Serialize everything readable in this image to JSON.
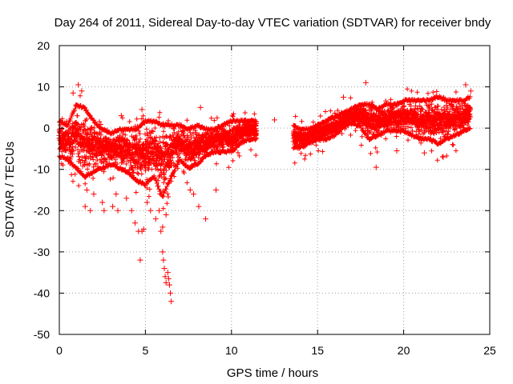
{
  "chart_data": {
    "type": "scatter",
    "title": "Day 264 of 2011, Sidereal Day-to-day VTEC variation (SDTVAR) for receiver bndy",
    "xlabel": "GPS time / hours",
    "ylabel": "SDTVAR / TECUs",
    "xlim": [
      0,
      25
    ],
    "ylim": [
      -50,
      20
    ],
    "xticks": [
      0,
      5,
      10,
      15,
      20,
      25
    ],
    "yticks": [
      -50,
      -40,
      -30,
      -20,
      -10,
      0,
      10,
      20
    ],
    "grid": true,
    "marker": "+",
    "color": "#ff0000",
    "series": [
      {
        "name": "SDTVAR",
        "band": [
          {
            "x": 0.0,
            "lo": -7,
            "hi": 2
          },
          {
            "x": 0.5,
            "lo": -8,
            "hi": 1
          },
          {
            "x": 1.0,
            "lo": -10,
            "hi": 6
          },
          {
            "x": 1.5,
            "lo": -12,
            "hi": 5
          },
          {
            "x": 2.0,
            "lo": -11,
            "hi": 2
          },
          {
            "x": 2.5,
            "lo": -10,
            "hi": 0
          },
          {
            "x": 3.0,
            "lo": -9,
            "hi": -1
          },
          {
            "x": 3.5,
            "lo": -10,
            "hi": 0
          },
          {
            "x": 4.0,
            "lo": -11,
            "hi": 0
          },
          {
            "x": 4.5,
            "lo": -13,
            "hi": 0
          },
          {
            "x": 5.0,
            "lo": -14,
            "hi": 2
          },
          {
            "x": 5.5,
            "lo": -12,
            "hi": 2
          },
          {
            "x": 6.0,
            "lo": -17,
            "hi": 1
          },
          {
            "x": 6.5,
            "lo": -12,
            "hi": 1
          },
          {
            "x": 7.0,
            "lo": -8,
            "hi": 1
          },
          {
            "x": 7.5,
            "lo": -10,
            "hi": 0
          },
          {
            "x": 8.0,
            "lo": -9,
            "hi": 1
          },
          {
            "x": 8.5,
            "lo": -7,
            "hi": 0
          },
          {
            "x": 9.0,
            "lo": -6,
            "hi": 0
          },
          {
            "x": 9.5,
            "lo": -6,
            "hi": 1
          },
          {
            "x": 10.0,
            "lo": -6,
            "hi": 2
          },
          {
            "x": 10.5,
            "lo": -4,
            "hi": 2
          },
          {
            "x": 11.0,
            "lo": -3,
            "hi": 2
          },
          {
            "x": 11.5,
            "lo": -3,
            "hi": 2
          },
          {
            "gap": true
          },
          {
            "x": 13.6,
            "lo": -5,
            "hi": 1
          },
          {
            "x": 14.0,
            "lo": -5,
            "hi": 0
          },
          {
            "x": 14.5,
            "lo": -4,
            "hi": 0
          },
          {
            "x": 15.0,
            "lo": -3,
            "hi": 1
          },
          {
            "x": 15.5,
            "lo": -3,
            "hi": 2
          },
          {
            "x": 16.0,
            "lo": -2,
            "hi": 3
          },
          {
            "x": 16.5,
            "lo": 0,
            "hi": 4
          },
          {
            "x": 17.0,
            "lo": 1,
            "hi": 5
          },
          {
            "x": 17.5,
            "lo": 0,
            "hi": 6
          },
          {
            "x": 18.0,
            "lo": -3,
            "hi": 6
          },
          {
            "x": 18.5,
            "lo": -2,
            "hi": 5
          },
          {
            "x": 19.0,
            "lo": -1,
            "hi": 6
          },
          {
            "x": 19.5,
            "lo": -1,
            "hi": 6
          },
          {
            "x": 20.0,
            "lo": -1,
            "hi": 7
          },
          {
            "x": 20.5,
            "lo": -2,
            "hi": 7
          },
          {
            "x": 21.0,
            "lo": -3,
            "hi": 7
          },
          {
            "x": 21.5,
            "lo": -3,
            "hi": 7
          },
          {
            "x": 22.0,
            "lo": -4,
            "hi": 8
          },
          {
            "x": 22.5,
            "lo": -3,
            "hi": 7
          },
          {
            "x": 23.0,
            "lo": -2,
            "hi": 7
          },
          {
            "x": 23.5,
            "lo": -1,
            "hi": 7
          },
          {
            "x": 23.9,
            "lo": 0,
            "hi": 8
          }
        ],
        "outliers": [
          [
            1.1,
            10.5
          ],
          [
            0.8,
            8.5
          ],
          [
            1.3,
            9
          ],
          [
            1.6,
            -15
          ],
          [
            1.5,
            -19
          ],
          [
            1.8,
            -20
          ],
          [
            2.0,
            -16
          ],
          [
            2.5,
            -18
          ],
          [
            2.6,
            -20
          ],
          [
            3.1,
            -19
          ],
          [
            3.4,
            -20
          ],
          [
            3.3,
            -16
          ],
          [
            3.9,
            -17
          ],
          [
            4.2,
            -20
          ],
          [
            4.4,
            -23
          ],
          [
            4.6,
            -25
          ],
          [
            4.8,
            -25
          ],
          [
            4.9,
            -24.5
          ],
          [
            4.7,
            -32
          ],
          [
            5.1,
            -18
          ],
          [
            5.3,
            -20
          ],
          [
            5.6,
            -22
          ],
          [
            5.9,
            -25
          ],
          [
            6.0,
            -30
          ],
          [
            6.05,
            -32
          ],
          [
            6.1,
            -34
          ],
          [
            6.15,
            -36
          ],
          [
            6.2,
            -37.5
          ],
          [
            6.3,
            -35
          ],
          [
            6.4,
            -38
          ],
          [
            6.45,
            -40
          ],
          [
            6.5,
            -42
          ],
          [
            6.35,
            -36.5
          ],
          [
            6.0,
            -24
          ],
          [
            6.2,
            -21
          ],
          [
            5.8,
            -20
          ],
          [
            7.6,
            -15
          ],
          [
            7.8,
            -16
          ],
          [
            8.1,
            -19
          ],
          [
            8.5,
            -22
          ],
          [
            9.1,
            -15
          ],
          [
            8.2,
            5
          ],
          [
            4.8,
            4.5
          ],
          [
            3.6,
            3
          ],
          [
            12.5,
            2
          ],
          [
            16.5,
            7.5
          ],
          [
            17.8,
            11
          ],
          [
            18.4,
            -9.5
          ],
          [
            19.6,
            -5.5
          ],
          [
            21.2,
            -6
          ],
          [
            22.3,
            -7
          ],
          [
            23.6,
            10.5
          ],
          [
            23.9,
            9
          ]
        ]
      }
    ]
  }
}
